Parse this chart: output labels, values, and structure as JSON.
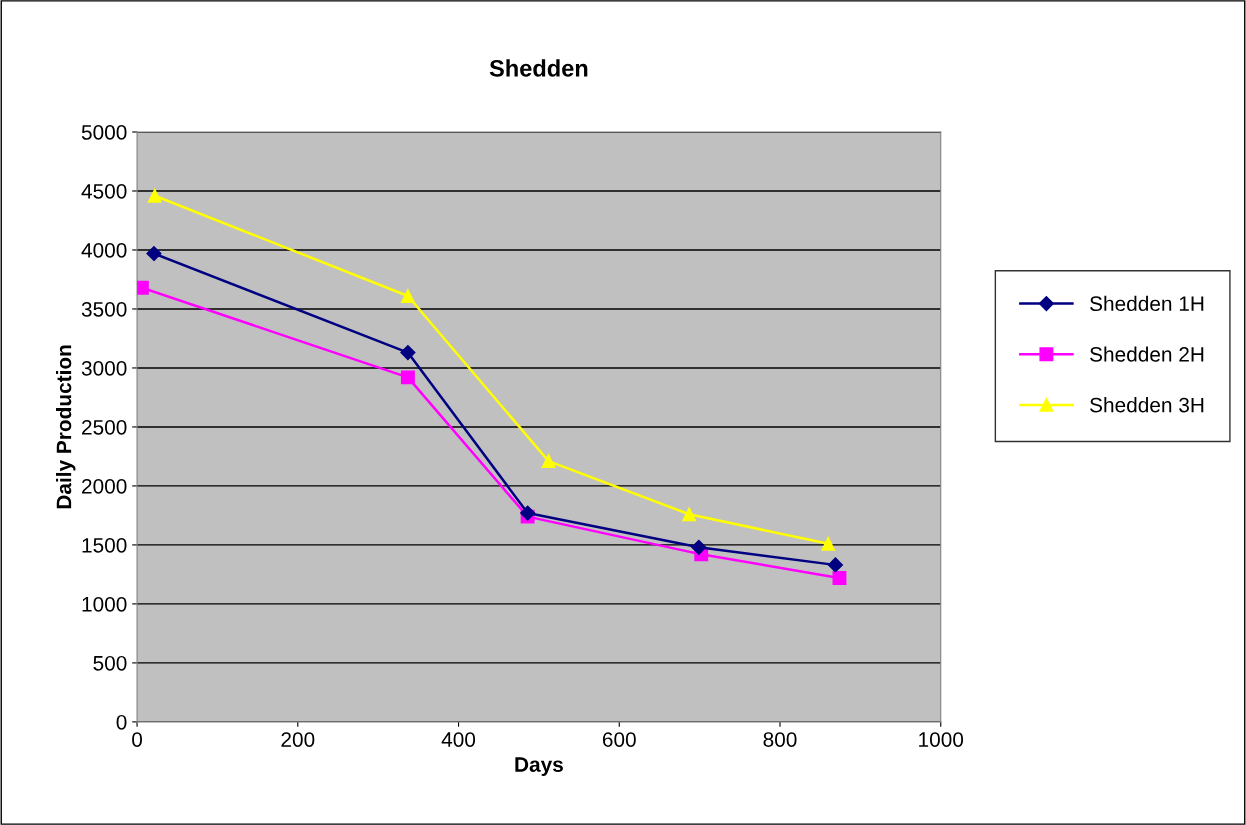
{
  "chart_data": {
    "type": "line",
    "title": "Shedden",
    "xlabel": "Days",
    "ylabel": "Daily Production",
    "xlim": [
      0,
      1000
    ],
    "xticks": [
      0,
      200,
      400,
      600,
      800,
      1000
    ],
    "ylim": [
      0,
      5000
    ],
    "yticks": [
      0,
      500,
      1000,
      1500,
      2000,
      2500,
      3000,
      3500,
      4000,
      4500,
      5000
    ],
    "grid": "y",
    "legend": "right",
    "series": [
      {
        "name": "Shedden 1H",
        "color": "#000080",
        "marker": "diamond",
        "x": [
          21,
          337,
          486,
          699,
          869
        ],
        "values": [
          3970,
          3130,
          1770,
          1480,
          1330
        ]
      },
      {
        "name": "Shedden 2H",
        "color": "#ff00ff",
        "marker": "square",
        "x": [
          6,
          337,
          486,
          702,
          874
        ],
        "values": [
          3680,
          2920,
          1740,
          1420,
          1220
        ]
      },
      {
        "name": "Shedden 3H",
        "color": "#ffff00",
        "marker": "triangle",
        "x": [
          22,
          337,
          512,
          687,
          860
        ],
        "values": [
          4460,
          3610,
          2210,
          1760,
          1510
        ]
      }
    ]
  }
}
